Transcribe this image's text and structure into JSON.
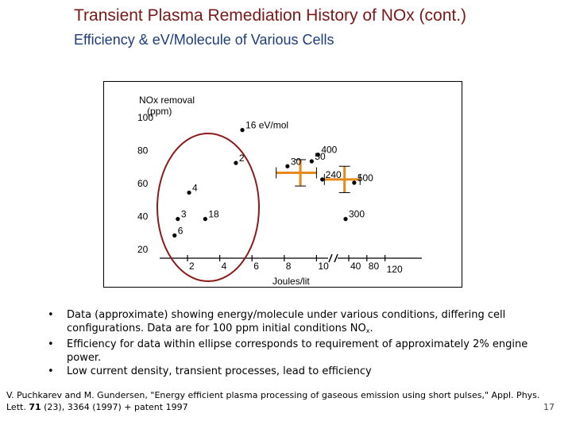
{
  "slide": {
    "title": "Transient Plasma Remediation History of NOx (cont.)",
    "subtitle": "Efficiency & eV/Molecule of Various Cells",
    "bullets": [
      {
        "text": "Data (approximate) showing energy/molecule under various conditions, differing cell configurations. Data are for 100 ppm initial conditions NO",
        "sub": "x",
        "after": "."
      },
      {
        "text": "Efficiency for data within ellipse corresponds to requirement of approximately 2% engine power."
      },
      {
        "text": "Low current density, transient processes, lead to efficiency"
      }
    ],
    "citation": {
      "before": "V. Puchkarev and M. Gundersen, \"Energy efficient plasma processing of gaseous emission using short pulses,\" Appl. Phys. Lett. ",
      "volume": "71",
      "after": " (23), 3364 (1997) + patent 1997"
    },
    "page_number": "17"
  },
  "chart_data": {
    "type": "scatter",
    "ylabel_line1": "NOx removal",
    "ylabel_line2": "(ppm)",
    "xlabel": "Joules/lit",
    "y_ticks": [
      "100",
      "80",
      "60",
      "40",
      "20"
    ],
    "y_tick_values": [
      100,
      80,
      60,
      40,
      20
    ],
    "x_ticks": [
      "2",
      "4",
      "6",
      "8",
      "10",
      "40",
      "80",
      "120"
    ],
    "x_tick_values": [
      2,
      4,
      6,
      8,
      10,
      40,
      80,
      120
    ],
    "x_axis_break_after": 10,
    "ylim": [
      10,
      110
    ],
    "grid": false,
    "points": [
      {
        "label": "16 eV/mol",
        "x": 5.4,
        "y": 92
      },
      {
        "label": "2",
        "x": 5.0,
        "y": 72
      },
      {
        "label": "4",
        "x": 2.1,
        "y": 54
      },
      {
        "label": "3",
        "x": 1.4,
        "y": 38
      },
      {
        "label": "6",
        "x": 1.2,
        "y": 28
      },
      {
        "label": "18",
        "x": 3.1,
        "y": 38
      },
      {
        "label": "30",
        "x": 8.2,
        "y": 70
      },
      {
        "label": "50",
        "x": 9.7,
        "y": 73
      },
      {
        "label": "400",
        "x": 11.0,
        "y": 77
      },
      {
        "label": "240",
        "x": 15.0,
        "y": 62
      },
      {
        "label": "500",
        "x": 52.0,
        "y": 60
      },
      {
        "label": "300",
        "x": 37.0,
        "y": 38
      }
    ],
    "error_bars": [
      {
        "x": 9.0,
        "y": 66,
        "x_low": 7.5,
        "x_high": 10.0,
        "y_low": 58,
        "y_high": 74
      },
      {
        "x": 36.0,
        "y": 62,
        "x_low": 17.0,
        "x_high": 65.0,
        "y_low": 54,
        "y_high": 70
      }
    ],
    "ellipse_note": "ellipse encloses points 16 eV/mol, 2, 4, 3, 6, 18"
  }
}
